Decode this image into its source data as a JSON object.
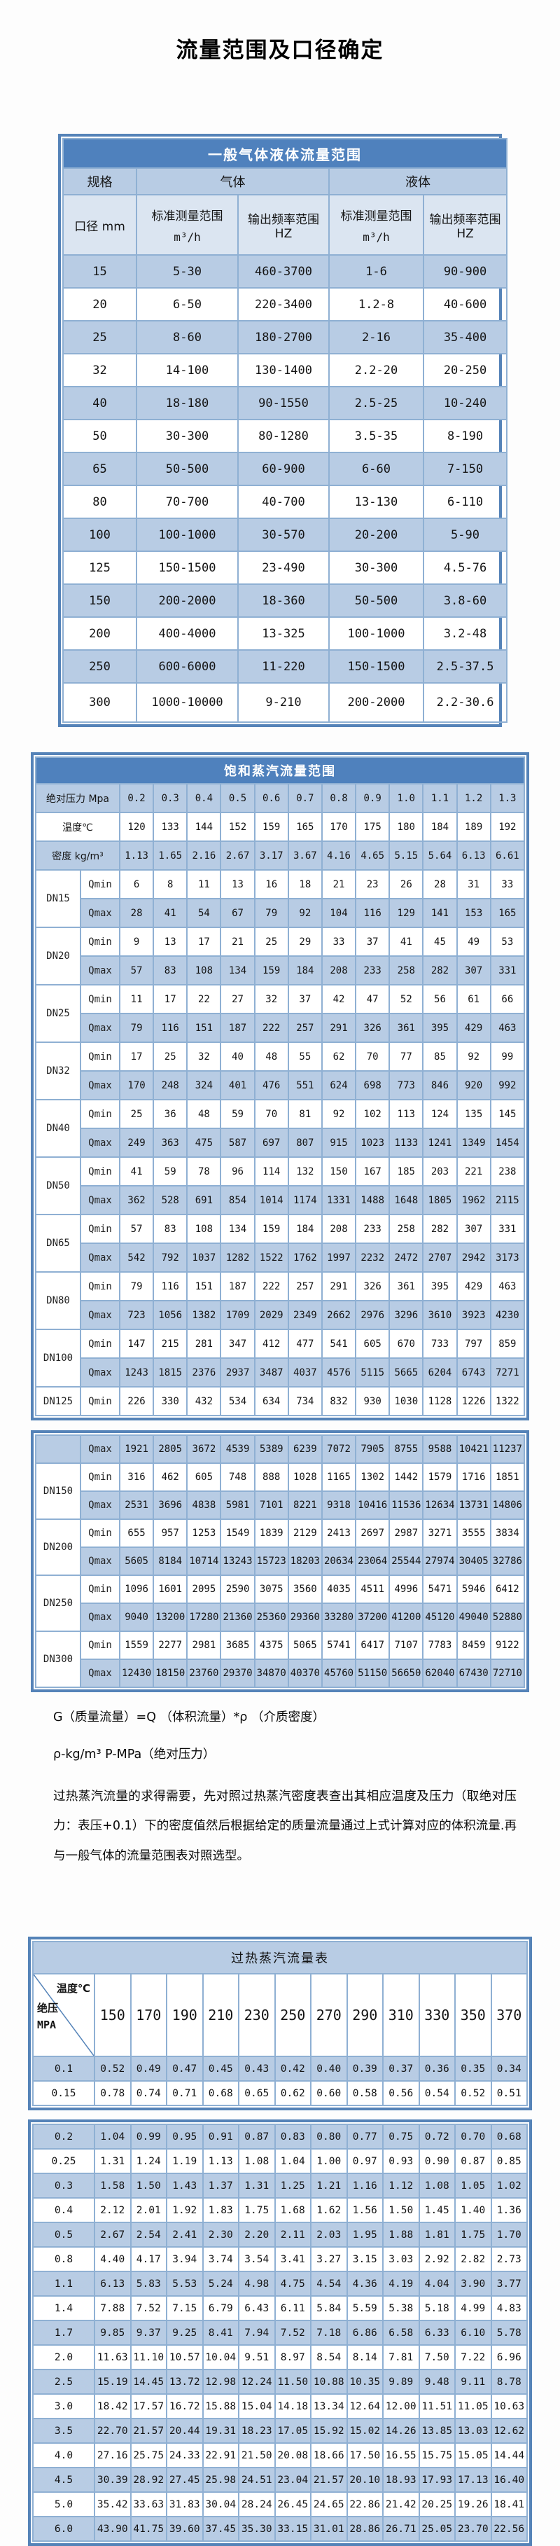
{
  "page_title": "流量范围及口径确定",
  "colors": {
    "accent_blue": "#4f81bd",
    "stripe_blue": "#b8cce4",
    "subheader_blue": "#dbe5f1",
    "frame_blue": "#5583b8",
    "grid_blue": "#8fb0d3"
  },
  "table1": {
    "title": "一般气体液体流量范围",
    "headers": {
      "spec": "规格",
      "gas": "气体",
      "liquid": "液体",
      "diameter": "口径 mm",
      "measure_label": "标准测量范围",
      "measure_unit": "m³/h",
      "freq_label": "输出频率范围 HZ"
    },
    "rows": [
      {
        "diameter": "15",
        "gas_range": "5-30",
        "gas_freq": "460-3700",
        "liquid_range": "1-6",
        "liquid_freq": "90-900"
      },
      {
        "diameter": "20",
        "gas_range": "6-50",
        "gas_freq": "220-3400",
        "liquid_range": "1.2-8",
        "liquid_freq": "40-600"
      },
      {
        "diameter": "25",
        "gas_range": "8-60",
        "gas_freq": "180-2700",
        "liquid_range": "2-16",
        "liquid_freq": "35-400"
      },
      {
        "diameter": "32",
        "gas_range": "14-100",
        "gas_freq": "130-1400",
        "liquid_range": "2.2-20",
        "liquid_freq": "20-250"
      },
      {
        "diameter": "40",
        "gas_range": "18-180",
        "gas_freq": "90-1550",
        "liquid_range": "2.5-25",
        "liquid_freq": "10-240"
      },
      {
        "diameter": "50",
        "gas_range": "30-300",
        "gas_freq": "80-1280",
        "liquid_range": "3.5-35",
        "liquid_freq": "8-190"
      },
      {
        "diameter": "65",
        "gas_range": "50-500",
        "gas_freq": "60-900",
        "liquid_range": "6-60",
        "liquid_freq": "7-150"
      },
      {
        "diameter": "80",
        "gas_range": "70-700",
        "gas_freq": "40-700",
        "liquid_range": "13-130",
        "liquid_freq": "6-110"
      },
      {
        "diameter": "100",
        "gas_range": "100-1000",
        "gas_freq": "30-570",
        "liquid_range": "20-200",
        "liquid_freq": "5-90"
      },
      {
        "diameter": "125",
        "gas_range": "150-1500",
        "gas_freq": "23-490",
        "liquid_range": "30-300",
        "liquid_freq": "4.5-76"
      },
      {
        "diameter": "150",
        "gas_range": "200-2000",
        "gas_freq": "18-360",
        "liquid_range": "50-500",
        "liquid_freq": "3.8-60"
      },
      {
        "diameter": "200",
        "gas_range": "400-4000",
        "gas_freq": "13-325",
        "liquid_range": "100-1000",
        "liquid_freq": "3.2-48"
      },
      {
        "diameter": "250",
        "gas_range": "600-6000",
        "gas_freq": "11-220",
        "liquid_range": "150-1500",
        "liquid_freq": "2.5-37.5"
      },
      {
        "diameter": "300",
        "gas_range": "1000-10000",
        "gas_freq": "9-210",
        "liquid_range": "200-2000",
        "liquid_freq": "2.2-30.6"
      }
    ]
  },
  "table2": {
    "title": "饱和蒸汽流量范围",
    "qmin_label": "Qmin",
    "qmax_label": "Qmax",
    "pressure": {
      "label": "绝对压力 Mpa",
      "values": [
        "0.2",
        "0.3",
        "0.4",
        "0.5",
        "0.6",
        "0.7",
        "0.8",
        "0.9",
        "1.0",
        "1.1",
        "1.2",
        "1.3"
      ]
    },
    "temperature": {
      "label": "温度℃",
      "values": [
        "120",
        "133",
        "144",
        "152",
        "159",
        "165",
        "170",
        "175",
        "180",
        "184",
        "189",
        "192"
      ]
    },
    "density": {
      "label": "密度 kg/m³",
      "values": [
        "1.13",
        "1.65",
        "2.16",
        "2.67",
        "3.17",
        "3.67",
        "4.16",
        "4.65",
        "5.15",
        "5.64",
        "6.13",
        "6.61"
      ]
    },
    "groups": [
      {
        "name": "DN15",
        "qmin": [
          "6",
          "8",
          "11",
          "13",
          "16",
          "18",
          "21",
          "23",
          "26",
          "28",
          "31",
          "33"
        ],
        "qmax": [
          "28",
          "41",
          "54",
          "67",
          "79",
          "92",
          "104",
          "116",
          "129",
          "141",
          "153",
          "165"
        ]
      },
      {
        "name": "DN20",
        "qmin": [
          "9",
          "13",
          "17",
          "21",
          "25",
          "29",
          "33",
          "37",
          "41",
          "45",
          "49",
          "53"
        ],
        "qmax": [
          "57",
          "83",
          "108",
          "134",
          "159",
          "184",
          "208",
          "233",
          "258",
          "282",
          "307",
          "331"
        ]
      },
      {
        "name": "DN25",
        "qmin": [
          "11",
          "17",
          "22",
          "27",
          "32",
          "37",
          "42",
          "47",
          "52",
          "56",
          "61",
          "66"
        ],
        "qmax": [
          "79",
          "116",
          "151",
          "187",
          "222",
          "257",
          "291",
          "326",
          "361",
          "395",
          "429",
          "463"
        ]
      },
      {
        "name": "DN32",
        "qmin": [
          "17",
          "25",
          "32",
          "40",
          "48",
          "55",
          "62",
          "70",
          "77",
          "85",
          "92",
          "99"
        ],
        "qmax": [
          "170",
          "248",
          "324",
          "401",
          "476",
          "551",
          "624",
          "698",
          "773",
          "846",
          "920",
          "992"
        ]
      },
      {
        "name": "DN40",
        "qmin": [
          "25",
          "36",
          "48",
          "59",
          "70",
          "81",
          "92",
          "102",
          "113",
          "124",
          "135",
          "145"
        ],
        "qmax": [
          "249",
          "363",
          "475",
          "587",
          "697",
          "807",
          "915",
          "1023",
          "1133",
          "1241",
          "1349",
          "1454"
        ]
      },
      {
        "name": "DN50",
        "qmin": [
          "41",
          "59",
          "78",
          "96",
          "114",
          "132",
          "150",
          "167",
          "185",
          "203",
          "221",
          "238"
        ],
        "qmax": [
          "362",
          "528",
          "691",
          "854",
          "1014",
          "1174",
          "1331",
          "1488",
          "1648",
          "1805",
          "1962",
          "2115"
        ]
      },
      {
        "name": "DN65",
        "qmin": [
          "57",
          "83",
          "108",
          "134",
          "159",
          "184",
          "208",
          "233",
          "258",
          "282",
          "307",
          "331"
        ],
        "qmax": [
          "542",
          "792",
          "1037",
          "1282",
          "1522",
          "1762",
          "1997",
          "2232",
          "2472",
          "2707",
          "2942",
          "3173"
        ]
      },
      {
        "name": "DN80",
        "qmin": [
          "79",
          "116",
          "151",
          "187",
          "222",
          "257",
          "291",
          "326",
          "361",
          "395",
          "429",
          "463"
        ],
        "qmax": [
          "723",
          "1056",
          "1382",
          "1709",
          "2029",
          "2349",
          "2662",
          "2976",
          "3296",
          "3610",
          "3923",
          "4230"
        ]
      },
      {
        "name": "DN100",
        "qmin": [
          "147",
          "215",
          "281",
          "347",
          "412",
          "477",
          "541",
          "605",
          "670",
          "733",
          "797",
          "859"
        ],
        "qmax": [
          "1243",
          "1815",
          "2376",
          "2937",
          "3487",
          "4037",
          "4576",
          "5115",
          "5665",
          "6204",
          "6743",
          "7271"
        ]
      },
      {
        "name": "DN125",
        "qmin": [
          "226",
          "330",
          "432",
          "534",
          "634",
          "734",
          "832",
          "930",
          "1030",
          "1128",
          "1226",
          "1322"
        ]
      }
    ]
  },
  "table3": {
    "continuation": {
      "label": "Qmax",
      "values": [
        "1921",
        "2805",
        "3672",
        "4539",
        "5389",
        "6239",
        "7072",
        "7905",
        "8755",
        "9588",
        "10421",
        "11237"
      ]
    },
    "groups": [
      {
        "name": "DN150",
        "qmin": [
          "316",
          "462",
          "605",
          "748",
          "888",
          "1028",
          "1165",
          "1302",
          "1442",
          "1579",
          "1716",
          "1851"
        ],
        "qmax": [
          "2531",
          "3696",
          "4838",
          "5981",
          "7101",
          "8221",
          "9318",
          "10416",
          "11536",
          "12634",
          "13731",
          "14806"
        ]
      },
      {
        "name": "DN200",
        "qmin": [
          "655",
          "957",
          "1253",
          "1549",
          "1839",
          "2129",
          "2413",
          "2697",
          "2987",
          "3271",
          "3555",
          "3834"
        ],
        "qmax": [
          "5605",
          "8184",
          "10714",
          "13243",
          "15723",
          "18203",
          "20634",
          "23064",
          "25544",
          "27974",
          "30405",
          "32786"
        ]
      },
      {
        "name": "DN250",
        "qmin": [
          "1096",
          "1601",
          "2095",
          "2590",
          "3075",
          "3560",
          "4035",
          "4511",
          "4996",
          "5471",
          "5946",
          "6412"
        ],
        "qmax": [
          "9040",
          "13200",
          "17280",
          "21360",
          "25360",
          "29360",
          "33280",
          "37200",
          "41200",
          "45120",
          "49040",
          "52880"
        ]
      },
      {
        "name": "DN300",
        "qmin": [
          "1559",
          "2277",
          "2981",
          "3685",
          "4375",
          "5065",
          "5741",
          "6417",
          "7107",
          "7783",
          "8459",
          "9122"
        ],
        "qmax": [
          "12430",
          "18150",
          "23760",
          "29370",
          "34870",
          "40370",
          "45760",
          "51150",
          "56650",
          "62040",
          "67430",
          "72710"
        ]
      }
    ]
  },
  "notes": {
    "formula": "G（质量流量）=Q （体积流量）*ρ （介质密度）",
    "symbols": "ρ-kg/m³ P-MPa（绝对压力）",
    "paragraph": "过热蒸汽流量的求得需要，先对照过热蒸汽密度表查出其相应温度及压力（取绝对压力：表压+0.1）下的密度值然后根据给定的质量流量通过上式计算对应的体积流量.再与一般气体的流量范围表对照选型。"
  },
  "table4": {
    "title": "过热蒸汽流量表",
    "corner": {
      "temp_label": "温度℃",
      "pressure_label": "绝压",
      "pressure_unit": "MPA"
    },
    "temps": [
      "150",
      "170",
      "190",
      "210",
      "230",
      "250",
      "270",
      "290",
      "310",
      "330",
      "350",
      "370"
    ],
    "block1": [
      {
        "p": "0.1",
        "values": [
          "0.52",
          "0.49",
          "0.47",
          "0.45",
          "0.43",
          "0.42",
          "0.40",
          "0.39",
          "0.37",
          "0.36",
          "0.35",
          "0.34"
        ]
      },
      {
        "p": "0.15",
        "values": [
          "0.78",
          "0.74",
          "0.71",
          "0.68",
          "0.65",
          "0.62",
          "0.60",
          "0.58",
          "0.56",
          "0.54",
          "0.52",
          "0.51"
        ]
      }
    ],
    "block2": [
      {
        "p": "0.2",
        "values": [
          "1.04",
          "0.99",
          "0.95",
          "0.91",
          "0.87",
          "0.83",
          "0.80",
          "0.77",
          "0.75",
          "0.72",
          "0.70",
          "0.68"
        ]
      },
      {
        "p": "0.25",
        "values": [
          "1.31",
          "1.24",
          "1.19",
          "1.13",
          "1.08",
          "1.04",
          "1.00",
          "0.97",
          "0.93",
          "0.90",
          "0.87",
          "0.85"
        ]
      },
      {
        "p": "0.3",
        "values": [
          "1.58",
          "1.50",
          "1.43",
          "1.37",
          "1.31",
          "1.25",
          "1.21",
          "1.16",
          "1.12",
          "1.08",
          "1.05",
          "1.02"
        ]
      },
      {
        "p": "0.4",
        "values": [
          "2.12",
          "2.01",
          "1.92",
          "1.83",
          "1.75",
          "1.68",
          "1.62",
          "1.56",
          "1.50",
          "1.45",
          "1.40",
          "1.36"
        ]
      },
      {
        "p": "0.5",
        "values": [
          "2.67",
          "2.54",
          "2.41",
          "2.30",
          "2.20",
          "2.11",
          "2.03",
          "1.95",
          "1.88",
          "1.81",
          "1.75",
          "1.70"
        ]
      },
      {
        "p": "0.8",
        "values": [
          "4.40",
          "4.17",
          "3.94",
          "3.74",
          "3.54",
          "3.41",
          "3.27",
          "3.15",
          "3.03",
          "2.92",
          "2.82",
          "2.73"
        ]
      },
      {
        "p": "1.1",
        "values": [
          "6.13",
          "5.83",
          "5.53",
          "5.24",
          "4.98",
          "4.75",
          "4.54",
          "4.36",
          "4.19",
          "4.04",
          "3.90",
          "3.77"
        ]
      },
      {
        "p": "1.4",
        "values": [
          "7.88",
          "7.52",
          "7.15",
          "6.79",
          "6.43",
          "6.11",
          "5.84",
          "5.59",
          "5.38",
          "5.18",
          "4.99",
          "4.83"
        ]
      },
      {
        "p": "1.7",
        "values": [
          "9.85",
          "9.37",
          "9.25",
          "8.41",
          "7.94",
          "7.52",
          "7.18",
          "6.86",
          "6.58",
          "6.33",
          "6.10",
          "5.78"
        ]
      },
      {
        "p": "2.0",
        "values": [
          "11.63",
          "11.10",
          "10.57",
          "10.04",
          "9.51",
          "8.97",
          "8.54",
          "8.14",
          "7.81",
          "7.50",
          "7.22",
          "6.96"
        ]
      },
      {
        "p": "2.5",
        "values": [
          "15.19",
          "14.45",
          "13.72",
          "12.98",
          "12.24",
          "11.50",
          "10.88",
          "10.35",
          "9.89",
          "9.48",
          "9.11",
          "8.78"
        ]
      },
      {
        "p": "3.0",
        "values": [
          "18.42",
          "17.57",
          "16.72",
          "15.88",
          "15.04",
          "14.18",
          "13.34",
          "12.64",
          "12.00",
          "11.51",
          "11.05",
          "10.63"
        ]
      },
      {
        "p": "3.5",
        "values": [
          "22.70",
          "21.57",
          "20.44",
          "19.31",
          "18.23",
          "17.05",
          "15.92",
          "15.02",
          "14.26",
          "13.85",
          "13.03",
          "12.62"
        ]
      },
      {
        "p": "4.0",
        "values": [
          "27.16",
          "25.75",
          "24.33",
          "22.91",
          "21.50",
          "20.08",
          "18.66",
          "17.50",
          "16.55",
          "15.75",
          "15.05",
          "14.44"
        ]
      },
      {
        "p": "4.5",
        "values": [
          "30.39",
          "28.92",
          "27.45",
          "25.98",
          "24.51",
          "23.04",
          "21.57",
          "20.10",
          "18.93",
          "17.93",
          "17.13",
          "16.40"
        ]
      },
      {
        "p": "5.0",
        "values": [
          "35.42",
          "33.63",
          "31.83",
          "30.04",
          "28.24",
          "26.45",
          "24.65",
          "22.86",
          "21.42",
          "20.25",
          "19.26",
          "18.41"
        ]
      },
      {
        "p": "6.0",
        "values": [
          "43.90",
          "41.75",
          "39.60",
          "37.45",
          "35.30",
          "33.15",
          "31.01",
          "28.86",
          "26.71",
          "25.05",
          "23.70",
          "22.56"
        ]
      }
    ]
  }
}
